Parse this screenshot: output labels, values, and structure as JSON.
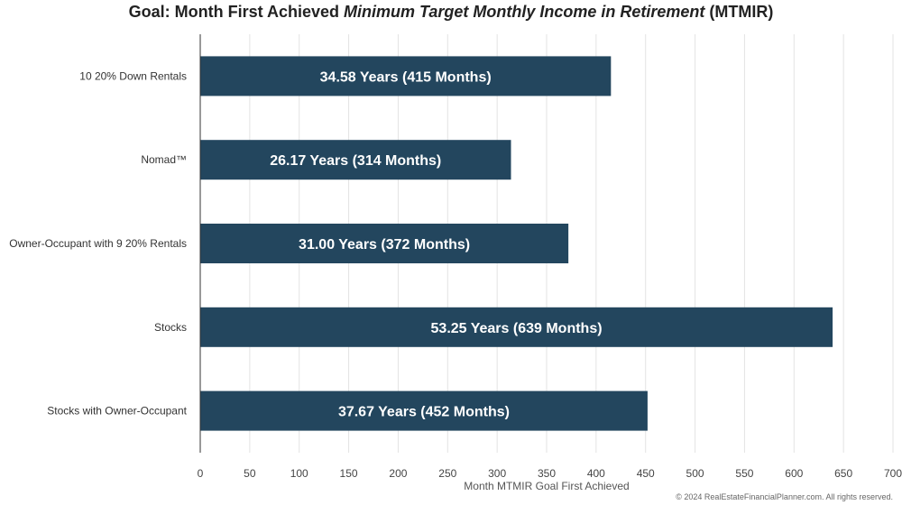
{
  "chart_data": {
    "type": "bar",
    "orientation": "horizontal",
    "title": {
      "prefix": "Goal: Month First Achieved ",
      "emphasis": "Minimum Target Monthly Income in Retirement",
      "suffix": " (MTMIR)"
    },
    "xlabel": "Month MTMIR Goal First Achieved",
    "ylabel": "",
    "xlim": [
      0,
      700
    ],
    "xticks": [
      0,
      50,
      100,
      150,
      200,
      250,
      300,
      350,
      400,
      450,
      500,
      550,
      600,
      650,
      700
    ],
    "grid": true,
    "categories": [
      "10 20% Down Rentals",
      "Nomad™",
      "Owner-Occupant with 9 20% Rentals",
      "Stocks",
      "Stocks with Owner-Occupant"
    ],
    "values": [
      415,
      314,
      372,
      639,
      452
    ],
    "data_labels": [
      "34.58 Years (415 Months)",
      "26.17 Years (314 Months)",
      "31.00 Years (372 Months)",
      "53.25 Years (639 Months)",
      "37.67 Years (452 Months)"
    ],
    "bar_color": "#23465e",
    "grid_color": "#e3e3e3",
    "axis_color": "#333333",
    "label_color": "#ffffff"
  },
  "footer": {
    "copyright": "© 2024 RealEstateFinancialPlanner.com. All rights reserved."
  }
}
